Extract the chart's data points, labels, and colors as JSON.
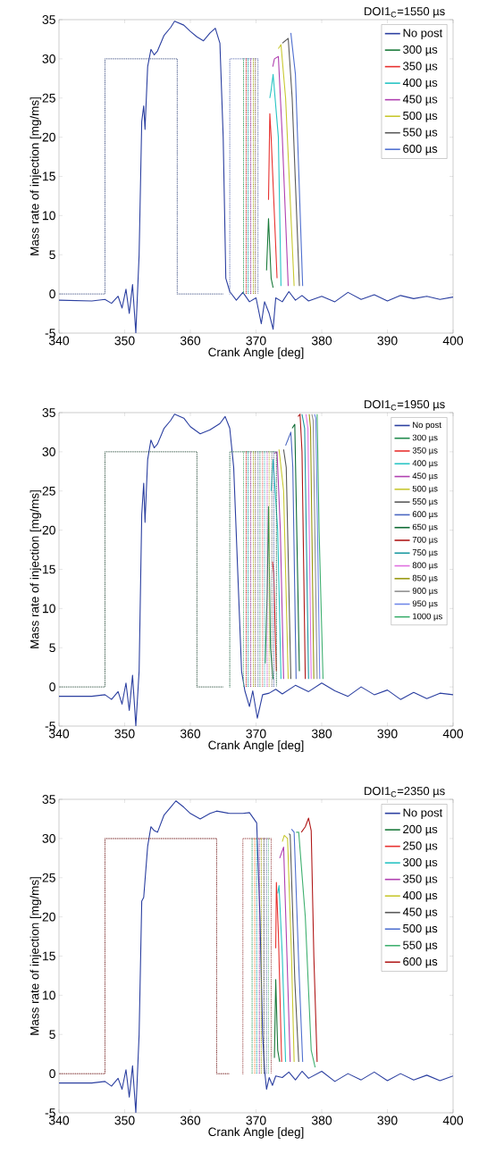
{
  "chart_data": [
    {
      "type": "line",
      "legend_title": "DOI1$_{C}$=1550 µs",
      "xlabel": "Crank Angle [deg]",
      "ylabel": "Mass rate of injection [mg/ms]",
      "xlim": [
        340,
        400
      ],
      "ylim": [
        -5,
        35
      ],
      "xticks": [
        340,
        350,
        360,
        370,
        380,
        390,
        400
      ],
      "yticks": [
        -5,
        0,
        5,
        10,
        15,
        20,
        25,
        30,
        35
      ],
      "legend": "top right",
      "series": [
        {
          "color": "#4a5a8a",
          "line_style": "dotted",
          "x": [
            340,
            347,
            347,
            358,
            358,
            365
          ],
          "values": [
            0,
            0,
            30,
            30,
            0,
            0
          ]
        },
        {
          "color": "#2f9f5a",
          "line_style": "dotted",
          "x": [
            368.1,
            368.1
          ],
          "values": [
            30,
            0
          ]
        },
        {
          "color": "#c02020",
          "line_style": "dotted",
          "x": [
            368.5,
            368.5
          ],
          "values": [
            30,
            0
          ]
        },
        {
          "color": "#10a0a0",
          "line_style": "dotted",
          "x": [
            368.8,
            368.8
          ],
          "values": [
            30,
            0
          ]
        },
        {
          "color": "#902890",
          "line_style": "dotted",
          "x": [
            369.2,
            369.2
          ],
          "values": [
            30,
            0
          ]
        },
        {
          "color": "#a0a010",
          "line_style": "dotted",
          "x": [
            369.6,
            369.6
          ],
          "values": [
            30,
            0
          ]
        },
        {
          "color": "#806040",
          "line_style": "dotted",
          "x": [
            369.9,
            369.9
          ],
          "values": [
            30,
            0
          ]
        },
        {
          "color": "#6a7ab8",
          "line_style": "dotted",
          "x": [
            366,
            366,
            370.3,
            370.3
          ],
          "values": [
            0,
            30,
            30,
            0
          ]
        },
        {
          "name": "No post",
          "color": "#2b3fa0",
          "x": [
            340,
            345,
            347,
            348,
            349,
            349.6,
            350.2,
            350.7,
            351.2,
            351.7,
            352.2,
            352.6,
            352.9,
            353.1,
            353.5,
            354,
            354.5,
            355,
            356,
            357,
            357.6,
            359,
            360,
            361,
            362,
            363,
            363.8,
            364.5,
            365,
            365.4,
            366,
            367,
            368,
            369,
            370,
            370.8,
            371.3,
            372,
            372.6,
            373,
            374,
            375,
            376,
            377,
            378,
            380,
            382,
            384,
            386,
            388,
            390,
            392,
            394,
            396,
            398,
            400
          ],
          "values": [
            -0.8,
            -0.9,
            -0.7,
            -1.2,
            -0.3,
            -1.8,
            0.6,
            -2.5,
            1.2,
            -5,
            5,
            22,
            24,
            21,
            29,
            31.2,
            30.5,
            31,
            33,
            34,
            34.8,
            34.3,
            33.5,
            32.8,
            32.3,
            33.3,
            33.9,
            32,
            20,
            2,
            0.3,
            -0.8,
            0.2,
            -1,
            -0.5,
            -3.8,
            -1,
            -2.5,
            -4.5,
            -0.5,
            -1,
            0.3,
            -0.8,
            -0.2,
            -0.9,
            -0.3,
            -1,
            0.2,
            -0.7,
            -0.1,
            -0.9,
            -0.2,
            -0.6,
            -0.3,
            -0.7,
            -0.4
          ]
        },
        {
          "name": "300 µs",
          "color": "#1a7a3a",
          "x": [
            371.6,
            371.9,
            372.3,
            372.6
          ],
          "values": [
            3,
            9.6,
            2,
            0.8
          ]
        },
        {
          "name": "350 µs",
          "color": "#e8312f",
          "x": [
            371.9,
            372.1,
            372.3,
            373.2
          ],
          "values": [
            12,
            23,
            20,
            2
          ]
        },
        {
          "name": "400 µs",
          "color": "#28c4c4",
          "x": [
            372.1,
            372.3,
            372.6,
            373.4,
            373.8
          ],
          "values": [
            25,
            26,
            28,
            20,
            1
          ]
        },
        {
          "name": "450 µs",
          "color": "#b040b0",
          "x": [
            372.55,
            372.8,
            373.4,
            374,
            374.9
          ],
          "values": [
            29,
            30,
            30.3,
            20,
            1
          ]
        },
        {
          "name": "500 µs",
          "color": "#c8c830",
          "x": [
            373.4,
            373.8,
            374.5,
            375.8
          ],
          "values": [
            31.3,
            31.8,
            25,
            1
          ]
        },
        {
          "name": "550 µs",
          "color": "#5a5a5a",
          "x": [
            374,
            374.9,
            375.5,
            376.6
          ],
          "values": [
            32,
            32.6,
            25,
            1
          ]
        },
        {
          "name": "600 µs",
          "color": "#5070d0",
          "x": [
            375.3,
            376,
            377.1
          ],
          "values": [
            33.3,
            28,
            1
          ]
        }
      ]
    },
    {
      "type": "line",
      "legend_title": "DOI1$_{C}$=1950 µs",
      "xlabel": "Crank Angle [deg]",
      "ylabel": "Mass rate of injection [mg/ms]",
      "xlim": [
        340,
        400
      ],
      "ylim": [
        -5,
        35
      ],
      "xticks": [
        340,
        350,
        360,
        370,
        380,
        390,
        400
      ],
      "yticks": [
        -5,
        0,
        5,
        10,
        15,
        20,
        25,
        30,
        35
      ],
      "legend": "top right",
      "series": [
        {
          "color": "#335544",
          "line_style": "dotted",
          "x": [
            340,
            347,
            347,
            361,
            361,
            365
          ],
          "values": [
            0,
            0,
            30,
            30,
            0,
            0
          ]
        },
        {
          "color": "#5cb87a",
          "line_style": "dotted",
          "x": [
            368.1,
            368.1
          ],
          "values": [
            30,
            0
          ]
        },
        {
          "color": "#c02020",
          "line_style": "dotted",
          "x": [
            368.5,
            368.5
          ],
          "values": [
            30,
            0
          ]
        },
        {
          "color": "#10a0a0",
          "line_style": "dotted",
          "x": [
            368.8,
            368.8
          ],
          "values": [
            30,
            0
          ]
        },
        {
          "color": "#902890",
          "line_style": "dotted",
          "x": [
            369.2,
            369.2
          ],
          "values": [
            30,
            0
          ]
        },
        {
          "color": "#a0a010",
          "line_style": "dotted",
          "x": [
            369.6,
            369.6
          ],
          "values": [
            30,
            0
          ]
        },
        {
          "color": "#806040",
          "line_style": "dotted",
          "x": [
            369.9,
            369.9
          ],
          "values": [
            30,
            0
          ]
        },
        {
          "color": "#6a7ab8",
          "line_style": "dotted",
          "x": [
            370.3,
            370.3
          ],
          "values": [
            30,
            0
          ]
        },
        {
          "color": "#3c9a66",
          "line_style": "dotted",
          "x": [
            370.6,
            370.6
          ],
          "values": [
            30,
            0
          ]
        },
        {
          "color": "#e05858",
          "line_style": "dotted",
          "x": [
            371,
            371
          ],
          "values": [
            30,
            0
          ]
        },
        {
          "color": "#40b8c0",
          "line_style": "dotted",
          "x": [
            371.3,
            371.3
          ],
          "values": [
            30,
            0
          ]
        },
        {
          "color": "#c050c0",
          "line_style": "dotted",
          "x": [
            371.7,
            371.7
          ],
          "values": [
            30,
            0
          ]
        },
        {
          "color": "#b8b840",
          "line_style": "dotted",
          "x": [
            372,
            372
          ],
          "values": [
            30,
            0
          ]
        },
        {
          "color": "#707070",
          "line_style": "dotted",
          "x": [
            372.4,
            372.4
          ],
          "values": [
            30,
            0
          ]
        },
        {
          "color": "#5868a8",
          "line_style": "dotted",
          "x": [
            372.7,
            372.7
          ],
          "values": [
            30,
            0
          ]
        },
        {
          "color": "#2b6a4a",
          "line_style": "dotted",
          "x": [
            366,
            366,
            373.1,
            373.1
          ],
          "values": [
            0,
            30,
            30,
            0
          ]
        },
        {
          "name": "No post",
          "color": "#2b3fa0",
          "x": [
            340,
            345,
            347,
            348,
            349,
            349.6,
            350.2,
            350.7,
            351.2,
            351.7,
            352.2,
            352.6,
            352.9,
            353.1,
            353.5,
            354,
            354.5,
            355,
            356,
            357,
            357.6,
            359,
            360,
            361.5,
            363,
            364.5,
            365.3,
            366,
            366.6,
            367.2,
            367.8,
            368.3,
            369,
            369.5,
            370.2,
            371,
            372,
            373,
            374,
            376,
            378,
            380,
            382,
            384,
            386,
            388,
            390,
            392,
            394,
            396,
            398,
            400
          ],
          "values": [
            -1.2,
            -1.2,
            -1.0,
            -1.6,
            -0.6,
            -2.2,
            0.5,
            -3,
            1.5,
            -5,
            2,
            22,
            26,
            21,
            29,
            31.5,
            30.5,
            31,
            33,
            34,
            34.8,
            34.3,
            33.2,
            32.3,
            32.8,
            33.6,
            34.5,
            33,
            28,
            15,
            2,
            -0.5,
            -2.5,
            -0.5,
            -4,
            -1,
            -0.8,
            -0.3,
            -0.9,
            0.2,
            -0.6,
            0.5,
            -0.5,
            -1.2,
            0,
            -1,
            -0.4,
            -1.6,
            -0.7,
            -1.5,
            -0.8,
            -1.0
          ]
        },
        {
          "name": "300 µs",
          "color": "#1f8a4c",
          "x": [
            371.4,
            371.7,
            371.9,
            372.2,
            372.6
          ],
          "values": [
            3,
            12,
            23,
            5,
            1
          ]
        },
        {
          "name": "350 µs",
          "color": "#e8312f",
          "x": [
            372.5,
            372.7,
            372.9,
            373.1
          ],
          "values": [
            16,
            14.5,
            8,
            2
          ]
        },
        {
          "name": "400 µs",
          "color": "#28c4c4",
          "x": [
            372.3,
            372.6,
            373.3,
            373.8
          ],
          "values": [
            25,
            29,
            20,
            1
          ]
        },
        {
          "name": "450 µs",
          "color": "#b040b0",
          "x": [
            372.8,
            373.2,
            373.7,
            374.2
          ],
          "values": [
            29.8,
            30,
            20,
            1
          ]
        },
        {
          "name": "500 µs",
          "color": "#c8c830",
          "x": [
            373.5,
            374.2,
            374.9
          ],
          "values": [
            30.3,
            25,
            1
          ]
        },
        {
          "name": "550 µs",
          "color": "#5a5a5a",
          "x": [
            374.2,
            374.6,
            375.3
          ],
          "values": [
            30.3,
            28,
            1
          ]
        },
        {
          "name": "600 µs",
          "color": "#4a66c0",
          "x": [
            374.5,
            375.3,
            375.6,
            376.1
          ],
          "values": [
            30.8,
            32.5,
            28,
            1
          ]
        },
        {
          "name": "650 µs",
          "color": "#0e6b34",
          "x": [
            375.5,
            375.9,
            376.6
          ],
          "values": [
            33,
            33.5,
            2
          ]
        },
        {
          "name": "700 µs",
          "color": "#b01818",
          "x": [
            376.4,
            376.7,
            377,
            377.5
          ],
          "values": [
            34.5,
            34.8,
            30,
            1
          ]
        },
        {
          "name": "750 µs",
          "color": "#1898a0",
          "x": [
            377,
            377.4,
            378
          ],
          "values": [
            34.8,
            33,
            1
          ]
        },
        {
          "name": "800 µs",
          "color": "#e070e0",
          "x": [
            377.6,
            377.9,
            378.4
          ],
          "values": [
            34.8,
            33,
            1
          ]
        },
        {
          "name": "850 µs",
          "color": "#989810",
          "x": [
            378.1,
            378.3,
            378.8
          ],
          "values": [
            34.8,
            33,
            1
          ]
        },
        {
          "name": "900 µs",
          "color": "#909090",
          "x": [
            378.5,
            378.7,
            379.3
          ],
          "values": [
            34.8,
            34,
            1
          ]
        },
        {
          "name": "950 µs",
          "color": "#7088e8",
          "x": [
            378.9,
            379.1,
            379.7
          ],
          "values": [
            34.8,
            34.3,
            1
          ]
        },
        {
          "name": "1000 µs",
          "color": "#40b070",
          "x": [
            379.3,
            379.6,
            380.2
          ],
          "values": [
            34.8,
            20,
            1
          ]
        }
      ]
    },
    {
      "type": "line",
      "legend_title": "DOI1$_{C}$=2350 µs",
      "xlabel": "Crank Angle [deg]",
      "ylabel": "Mass rate of injection [mg/ms]",
      "xlim": [
        340,
        400
      ],
      "ylim": [
        -5,
        35
      ],
      "xticks": [
        340,
        350,
        360,
        370,
        380,
        390,
        400
      ],
      "yticks": [
        -5,
        0,
        5,
        10,
        15,
        20,
        25,
        30,
        35
      ],
      "legend": "top right",
      "series": [
        {
          "color": "#7a2a2a",
          "line_style": "dotted",
          "x": [
            340,
            347,
            347,
            364,
            364,
            366
          ],
          "values": [
            0,
            0,
            30,
            30,
            0,
            0
          ]
        },
        {
          "color": "#2f9f5a",
          "line_style": "dotted",
          "x": [
            369.4,
            369.4
          ],
          "values": [
            30,
            0
          ]
        },
        {
          "color": "#ff7a30",
          "line_style": "dotted",
          "x": [
            369.8,
            369.8
          ],
          "values": [
            30,
            0
          ]
        },
        {
          "color": "#10a0a0",
          "line_style": "dotted",
          "x": [
            370.1,
            370.1
          ],
          "values": [
            30,
            0
          ]
        },
        {
          "color": "#902890",
          "line_style": "dotted",
          "x": [
            370.5,
            370.5
          ],
          "values": [
            30,
            0
          ]
        },
        {
          "color": "#a0a010",
          "line_style": "dotted",
          "x": [
            370.8,
            370.8
          ],
          "values": [
            30,
            0
          ]
        },
        {
          "color": "#404040",
          "line_style": "dotted",
          "x": [
            371.2,
            371.2
          ],
          "values": [
            30,
            0
          ]
        },
        {
          "color": "#6a7ab8",
          "line_style": "dotted",
          "x": [
            371.6,
            371.6
          ],
          "values": [
            30,
            0
          ]
        },
        {
          "color": "#70c090",
          "line_style": "dotted",
          "x": [
            371.9,
            371.9
          ],
          "values": [
            30,
            0
          ]
        },
        {
          "color": "#a05050",
          "line_style": "dotted",
          "x": [
            368,
            368,
            372.3,
            372.3
          ],
          "values": [
            0,
            30,
            30,
            0
          ]
        },
        {
          "name": "No post",
          "color": "#2b3fa0",
          "x": [
            340,
            345,
            347,
            348,
            349,
            349.6,
            350.2,
            350.7,
            351.2,
            351.7,
            352.2,
            352.6,
            352.9,
            353.5,
            354,
            354.5,
            355,
            356,
            357,
            357.8,
            359,
            360,
            361.5,
            363,
            364,
            366,
            368,
            369,
            370.1,
            370.6,
            371,
            371.3,
            371.6,
            372,
            372.5,
            373,
            374,
            375,
            376,
            377,
            378,
            380,
            382,
            384,
            386,
            388,
            390,
            392,
            394,
            396,
            398,
            400
          ],
          "values": [
            -1.2,
            -1.2,
            -1.0,
            -1.6,
            -0.6,
            -2,
            0.5,
            -3,
            1,
            -5,
            5,
            22,
            22.5,
            29,
            31.5,
            31,
            30.8,
            33,
            34,
            34.8,
            34,
            33.2,
            32.5,
            33.2,
            33.5,
            33.2,
            33.2,
            33.3,
            32,
            20,
            5,
            0.5,
            -2,
            -0.5,
            -1.5,
            -0.3,
            -0.5,
            0.2,
            -0.8,
            0.3,
            -0.6,
            0.3,
            -1,
            0,
            -0.8,
            0.2,
            -0.9,
            0,
            -0.8,
            -0.2,
            -0.9,
            -0.3
          ]
        },
        {
          "name": "200 µs",
          "color": "#1a7a3a",
          "x": [
            372.8,
            373,
            373.3,
            373.6
          ],
          "values": [
            2,
            12,
            3,
            1.5
          ]
        },
        {
          "name": "250 µs",
          "color": "#e8312f",
          "x": [
            373,
            373.1,
            373.4,
            373.9
          ],
          "values": [
            16,
            24.4,
            18,
            1.5
          ]
        },
        {
          "name": "300 µs",
          "color": "#28c4c4",
          "x": [
            373.3,
            373.5,
            374,
            374.5
          ],
          "values": [
            23,
            24,
            15,
            1.5
          ]
        },
        {
          "name": "350 µs",
          "color": "#b040b0",
          "x": [
            373.6,
            374.2,
            374.6,
            375.2
          ],
          "values": [
            27.5,
            28.9,
            18,
            1.5
          ]
        },
        {
          "name": "400 µs",
          "color": "#c8c830",
          "x": [
            374,
            374.3,
            374.8,
            375.4,
            375.8
          ],
          "values": [
            29.6,
            30.4,
            30,
            15,
            1.5
          ]
        },
        {
          "name": "450 µs",
          "color": "#5a5a5a",
          "x": [
            375,
            375.2,
            375.9,
            376.5
          ],
          "values": [
            30.6,
            30.5,
            12,
            1.5
          ]
        },
        {
          "name": "500 µs",
          "color": "#5070d0",
          "x": [
            375.4,
            375.8,
            376.5,
            377.1
          ],
          "values": [
            31.2,
            30.8,
            14,
            1.5
          ]
        },
        {
          "name": "550 µs",
          "color": "#40b070",
          "x": [
            376.1,
            376.5,
            377.5,
            378.4,
            379
          ],
          "values": [
            30.8,
            30.8,
            20,
            3,
            0.8
          ]
        },
        {
          "name": "600 µs",
          "color": "#b01818",
          "x": [
            376.9,
            377.5,
            378,
            378.4,
            378.8,
            379.3
          ],
          "values": [
            30.8,
            31.5,
            32.6,
            31,
            15,
            1.5
          ]
        }
      ]
    }
  ]
}
